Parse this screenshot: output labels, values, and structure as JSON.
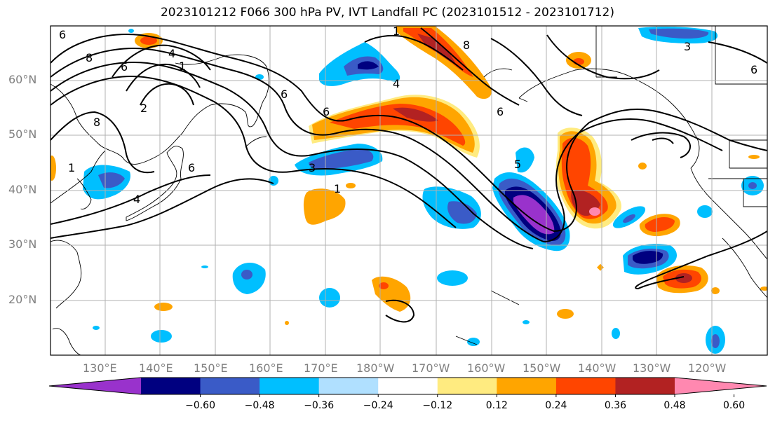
{
  "title": "2023101212 F066 300 hPa PV, IVT Landfall PC (2023101512 - 2023101712)",
  "lat_labels": [
    "60°N",
    "50°N",
    "40°N",
    "30°N",
    "20°N"
  ],
  "lon_labels": [
    "130°E",
    "140°E",
    "150°E",
    "160°E",
    "170°E",
    "180°W",
    "170°W",
    "160°W",
    "150°W",
    "140°W",
    "130°W",
    "120°W"
  ],
  "contour_labels": [
    "8",
    "6",
    "4",
    "1",
    "6",
    "8",
    "1",
    "2",
    "6",
    "3",
    "4",
    "6",
    "1",
    "4",
    "8",
    "6",
    "1",
    "6",
    "6",
    "5",
    "3"
  ],
  "colorbar": {
    "ticks": [
      "−0.60",
      "−0.48",
      "−0.36",
      "−0.24",
      "−0.12",
      "0.12",
      "0.24",
      "0.36",
      "0.48",
      "0.60"
    ],
    "colors": [
      "#9932cc",
      "#000080",
      "#3a5bc7",
      "#00bfff",
      "#b0e0ff",
      "#ffffff",
      "#ffeb80",
      "#ffa500",
      "#ff4500",
      "#b22222",
      "#ff88b0"
    ]
  },
  "palette": {
    "neg_extreme": "#9932cc",
    "neg_strong": "#000080",
    "neg_mid": "#3a5bc7",
    "neg_weak": "#00bfff",
    "neg_faint": "#b0e0ff",
    "pos_faint": "#ffeb80",
    "pos_weak": "#ffa500",
    "pos_mid": "#ff4500",
    "pos_strong": "#b22222",
    "pos_extreme": "#ff88b0"
  }
}
